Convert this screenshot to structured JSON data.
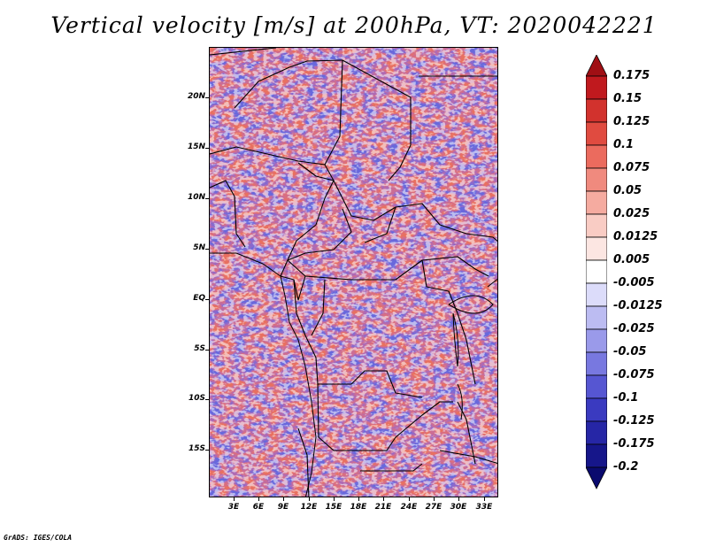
{
  "title": "Vertical velocity [m/s] at 200hPa, VT: 2020042221",
  "credit": "GrADS: IGES/COLA",
  "map": {
    "latitude_labels": [
      "20N",
      "15N",
      "10N",
      "5N",
      "EQ",
      "5S",
      "10S",
      "15S"
    ],
    "longitude_labels": [
      "3E",
      "6E",
      "9E",
      "12E",
      "15E",
      "18E",
      "21E",
      "24E",
      "27E",
      "30E",
      "33E"
    ]
  },
  "colorbar": {
    "levels": [
      "0.175",
      "0.15",
      "0.125",
      "0.1",
      "0.075",
      "0.05",
      "0.025",
      "0.0125",
      "0.005",
      "-0.005",
      "-0.0125",
      "-0.025",
      "-0.05",
      "-0.075",
      "-0.1",
      "-0.125",
      "-0.175",
      "-0.2"
    ],
    "colors": [
      "#a00f14",
      "#c0191e",
      "#d2322d",
      "#e04b40",
      "#eb6b5e",
      "#f08a7e",
      "#f5aba0",
      "#f9ccc4",
      "#fce6e2",
      "#ffffff",
      "#dcdcfa",
      "#bcbcf2",
      "#9a9aea",
      "#7878e0",
      "#5656d2",
      "#3a3ac0",
      "#2626a6",
      "#16168a",
      "#0a0a6e"
    ]
  }
}
